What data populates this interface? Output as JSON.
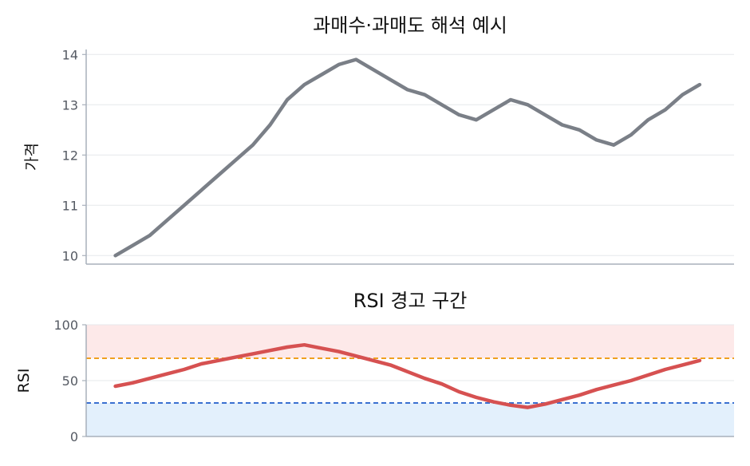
{
  "colors": {
    "price_line": "#7a7f87",
    "rsi_line": "#d65151",
    "overbought_line": "#f0a020",
    "oversold_line": "#3a6fd0",
    "overbought_zone": "#fde9e9",
    "oversold_zone": "#e3f0fc",
    "grid": "#e6e8eb",
    "axis": "#a8b0bb",
    "tick_text": "#555a63",
    "title_text": "#111111"
  },
  "chart_data": [
    {
      "type": "line",
      "title": "과매수·과매도 해석 예시",
      "xlabel": "",
      "ylabel": "가격",
      "ylim": [
        9.83,
        14.1
      ],
      "yticks": [
        "10",
        "11",
        "12",
        "13",
        "14"
      ],
      "grid": true,
      "x": [
        0,
        1,
        2,
        3,
        4,
        5,
        6,
        7,
        8,
        9,
        10,
        11,
        12,
        13,
        14,
        15,
        16,
        17,
        18,
        19,
        20,
        21,
        22,
        23,
        24,
        25,
        26,
        27,
        28,
        29,
        30,
        31,
        32,
        33,
        34
      ],
      "series": [
        {
          "values": [
            10.0,
            10.2,
            10.4,
            10.7,
            11.0,
            11.3,
            11.6,
            11.9,
            12.2,
            12.6,
            13.1,
            13.4,
            13.6,
            13.8,
            13.9,
            13.7,
            13.5,
            13.3,
            13.2,
            13.0,
            12.8,
            12.7,
            12.9,
            13.1,
            13.0,
            12.8,
            12.6,
            12.5,
            12.3,
            12.2,
            12.4,
            12.7,
            12.9,
            13.2,
            13.4
          ]
        }
      ]
    },
    {
      "type": "line",
      "title": "RSI 경고 구간",
      "xlabel": "",
      "ylabel": "RSI",
      "ylim": [
        0,
        100
      ],
      "yticks": [
        "0",
        "50",
        "100"
      ],
      "grid": true,
      "reference_lines": [
        70,
        30
      ],
      "zones": [
        [
          70,
          100
        ],
        [
          0,
          30
        ]
      ],
      "x": [
        0,
        1,
        2,
        3,
        4,
        5,
        6,
        7,
        8,
        9,
        10,
        11,
        12,
        13,
        14,
        15,
        16,
        17,
        18,
        19,
        20,
        21,
        22,
        23,
        24,
        25,
        26,
        27,
        28,
        29,
        30,
        31,
        32,
        33,
        34
      ],
      "series": [
        {
          "values": [
            45,
            48,
            52,
            56,
            60,
            65,
            68,
            71,
            74,
            77,
            80,
            82,
            79,
            76,
            72,
            68,
            64,
            58,
            52,
            47,
            40,
            35,
            31,
            28,
            26,
            29,
            33,
            37,
            42,
            46,
            50,
            55,
            60,
            64,
            68
          ]
        }
      ]
    }
  ]
}
